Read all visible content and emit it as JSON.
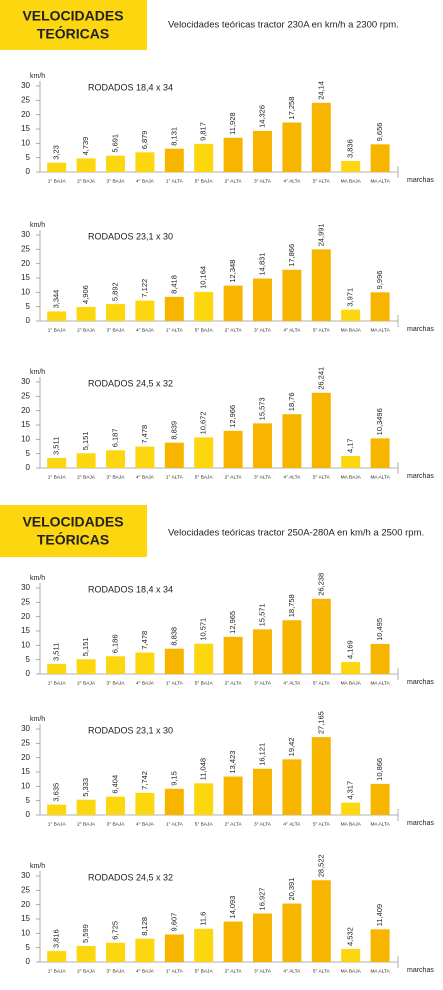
{
  "headers": [
    {
      "title": [
        "VELOCIDADES",
        "TEÓRICAS"
      ],
      "subtitle": "Velocidades teóricas tractor 230A en km/h a 2300 rpm."
    },
    {
      "title": [
        "VELOCIDADES",
        "TEÓRICAS"
      ],
      "subtitle": "Velocidades teóricas tractor 250A-280A en km/h a 2500 rpm."
    }
  ],
  "chart_data": [
    {
      "type": "bar",
      "title": "RODADOS 18,4 x 34",
      "ylabel": "km/h",
      "xlabel": "marchas",
      "categories": [
        "1° BAJA",
        "2° BAJA",
        "3° BAJA",
        "4° BAJA",
        "1° ALTA",
        "5° BAJA",
        "2° ALTA",
        "3° ALTA",
        "4° ALTA",
        "5° ALTA",
        "MA BAJA",
        "MA ALTA"
      ],
      "values": [
        3.23,
        4.739,
        5.691,
        6.879,
        8.131,
        9.817,
        11.928,
        14.326,
        17.258,
        24.14,
        3.836,
        9.656
      ],
      "value_labels": [
        "3,23",
        "4,739",
        "5,691",
        "6,879",
        "8,131",
        "9,817",
        "11,928",
        "14,326",
        "17,258",
        "24,14",
        "3,836",
        "9,656"
      ],
      "colors": [
        "#fcd70f",
        "#fcd70f",
        "#fcd70f",
        "#fcd70f",
        "#f7b500",
        "#fcd70f",
        "#f7b500",
        "#f7b500",
        "#f7b500",
        "#f7b500",
        "#fcd70f",
        "#f7b500"
      ],
      "ylim": [
        0,
        30
      ],
      "yticks": [
        0,
        5,
        10,
        15,
        20,
        25,
        30
      ]
    },
    {
      "type": "bar",
      "title": "RODADOS 23,1 x 30",
      "ylabel": "km/h",
      "xlabel": "marchas",
      "categories": [
        "1° BAJA",
        "2° BAJA",
        "3° BAJA",
        "4° BAJA",
        "1° ALTA",
        "5° BAJA",
        "2° ALTA",
        "3° ALTA",
        "4° ALTA",
        "5° ALTA",
        "MA BAJA",
        "MA ALTA"
      ],
      "values": [
        3.344,
        4.906,
        5.892,
        7.122,
        8.418,
        10.164,
        12.348,
        14.831,
        17.866,
        24.991,
        3.971,
        9.996
      ],
      "value_labels": [
        "3,344",
        "4,906",
        "5,892",
        "7,122",
        "8,418",
        "10,164",
        "12,348",
        "14,831",
        "17,866",
        "24,991",
        "3,971",
        "9,996"
      ],
      "colors": [
        "#fcd70f",
        "#fcd70f",
        "#fcd70f",
        "#fcd70f",
        "#f7b500",
        "#fcd70f",
        "#f7b500",
        "#f7b500",
        "#f7b500",
        "#f7b500",
        "#fcd70f",
        "#f7b500"
      ],
      "ylim": [
        0,
        30
      ],
      "yticks": [
        0,
        5,
        10,
        15,
        20,
        25,
        30
      ]
    },
    {
      "type": "bar",
      "title": "RODADOS 24,5 x 32",
      "ylabel": "km/h",
      "xlabel": "marchas",
      "categories": [
        "1° BAJA",
        "2° BAJA",
        "3° BAJA",
        "4° BAJA",
        "1° ALTA",
        "5° BAJA",
        "2° ALTA",
        "3° ALTA",
        "4° ALTA",
        "5° ALTA",
        "MA BAJA",
        "MA ALTA"
      ],
      "values": [
        3.511,
        5.151,
        6.187,
        7.478,
        8.839,
        10.672,
        12.966,
        15.573,
        18.76,
        26.241,
        4.17,
        10.3496
      ],
      "value_labels": [
        "3,511",
        "5,151",
        "6,187",
        "7,478",
        "8,839",
        "10,672",
        "12,966",
        "15,573",
        "18,76",
        "26,241",
        "4,17",
        "10,3496"
      ],
      "colors": [
        "#fcd70f",
        "#fcd70f",
        "#fcd70f",
        "#fcd70f",
        "#f7b500",
        "#fcd70f",
        "#f7b500",
        "#f7b500",
        "#f7b500",
        "#f7b500",
        "#fcd70f",
        "#f7b500"
      ],
      "ylim": [
        0,
        30
      ],
      "yticks": [
        0,
        5,
        10,
        15,
        20,
        25,
        30
      ]
    },
    {
      "type": "bar",
      "title": "RODADOS 18,4 x 34",
      "ylabel": "km/h",
      "xlabel": "marchas",
      "categories": [
        "1° BAJA",
        "2° BAJA",
        "3° BAJA",
        "4° BAJA",
        "1° ALTA",
        "5° BAJA",
        "2° ALTA",
        "3° ALTA",
        "4° ALTA",
        "5° ALTA",
        "MA BAJA",
        "MA ALTA"
      ],
      "values": [
        3.511,
        5.151,
        6.186,
        7.478,
        8.838,
        10.571,
        12.965,
        15.571,
        18.758,
        26.238,
        4.169,
        10.495
      ],
      "value_labels": [
        "3,511",
        "5,151",
        "6,186",
        "7,478",
        "8,838",
        "10,571",
        "12,965",
        "15,571",
        "18,758",
        "26,238",
        "4,169",
        "10,495"
      ],
      "colors": [
        "#fcd70f",
        "#fcd70f",
        "#fcd70f",
        "#fcd70f",
        "#f7b500",
        "#fcd70f",
        "#f7b500",
        "#f7b500",
        "#f7b500",
        "#f7b500",
        "#fcd70f",
        "#f7b500"
      ],
      "ylim": [
        0,
        30
      ],
      "yticks": [
        0,
        5,
        10,
        15,
        20,
        25,
        30
      ]
    },
    {
      "type": "bar",
      "title": "RODADOS 23,1 x 30",
      "ylabel": "km/h",
      "xlabel": "marchas",
      "categories": [
        "1° BAJA",
        "2° BAJA",
        "3° BAJA",
        "4° BAJA",
        "1° ALTA",
        "5° BAJA",
        "2° ALTA",
        "3° ALTA",
        "4° ALTA",
        "5° ALTA",
        "MA BAJA",
        "MA ALTA"
      ],
      "values": [
        3.635,
        5.333,
        6.404,
        7.742,
        9.15,
        11.048,
        13.423,
        16.121,
        19.42,
        27.165,
        4.317,
        10.866
      ],
      "value_labels": [
        "3,635",
        "5,333",
        "6,404",
        "7,742",
        "9,15",
        "11,048",
        "13,423",
        "16,121",
        "19,42",
        "27,165",
        "4,317",
        "10,866"
      ],
      "colors": [
        "#fcd70f",
        "#fcd70f",
        "#fcd70f",
        "#fcd70f",
        "#f7b500",
        "#fcd70f",
        "#f7b500",
        "#f7b500",
        "#f7b500",
        "#f7b500",
        "#fcd70f",
        "#f7b500"
      ],
      "ylim": [
        0,
        30
      ],
      "yticks": [
        0,
        5,
        10,
        15,
        20,
        25,
        30
      ]
    },
    {
      "type": "bar",
      "title": "RODADOS 24,5 x 32",
      "ylabel": "km/h",
      "xlabel": "marchas",
      "categories": [
        "1° BAJA",
        "2° BAJA",
        "3° BAJA",
        "4° BAJA",
        "1° ALTA",
        "5° BAJA",
        "2° ALTA",
        "3° ALTA",
        "4° ALTA",
        "5° ALTA",
        "MA BAJA",
        "MA ALTA"
      ],
      "values": [
        3.816,
        5.599,
        6.725,
        8.128,
        9.607,
        11.6,
        14.093,
        16.927,
        20.391,
        28.522,
        4.532,
        11.409
      ],
      "value_labels": [
        "3,816",
        "5,599",
        "6,725",
        "8,128",
        "9,607",
        "11,6",
        "14,093",
        "16,927",
        "20,391",
        "28,522",
        "4,532",
        "11,409"
      ],
      "colors": [
        "#fcd70f",
        "#fcd70f",
        "#fcd70f",
        "#fcd70f",
        "#f7b500",
        "#fcd70f",
        "#f7b500",
        "#f7b500",
        "#f7b500",
        "#f7b500",
        "#fcd70f",
        "#f7b500"
      ],
      "ylim": [
        0,
        30
      ],
      "yticks": [
        0,
        5,
        10,
        15,
        20,
        25,
        30
      ]
    }
  ]
}
